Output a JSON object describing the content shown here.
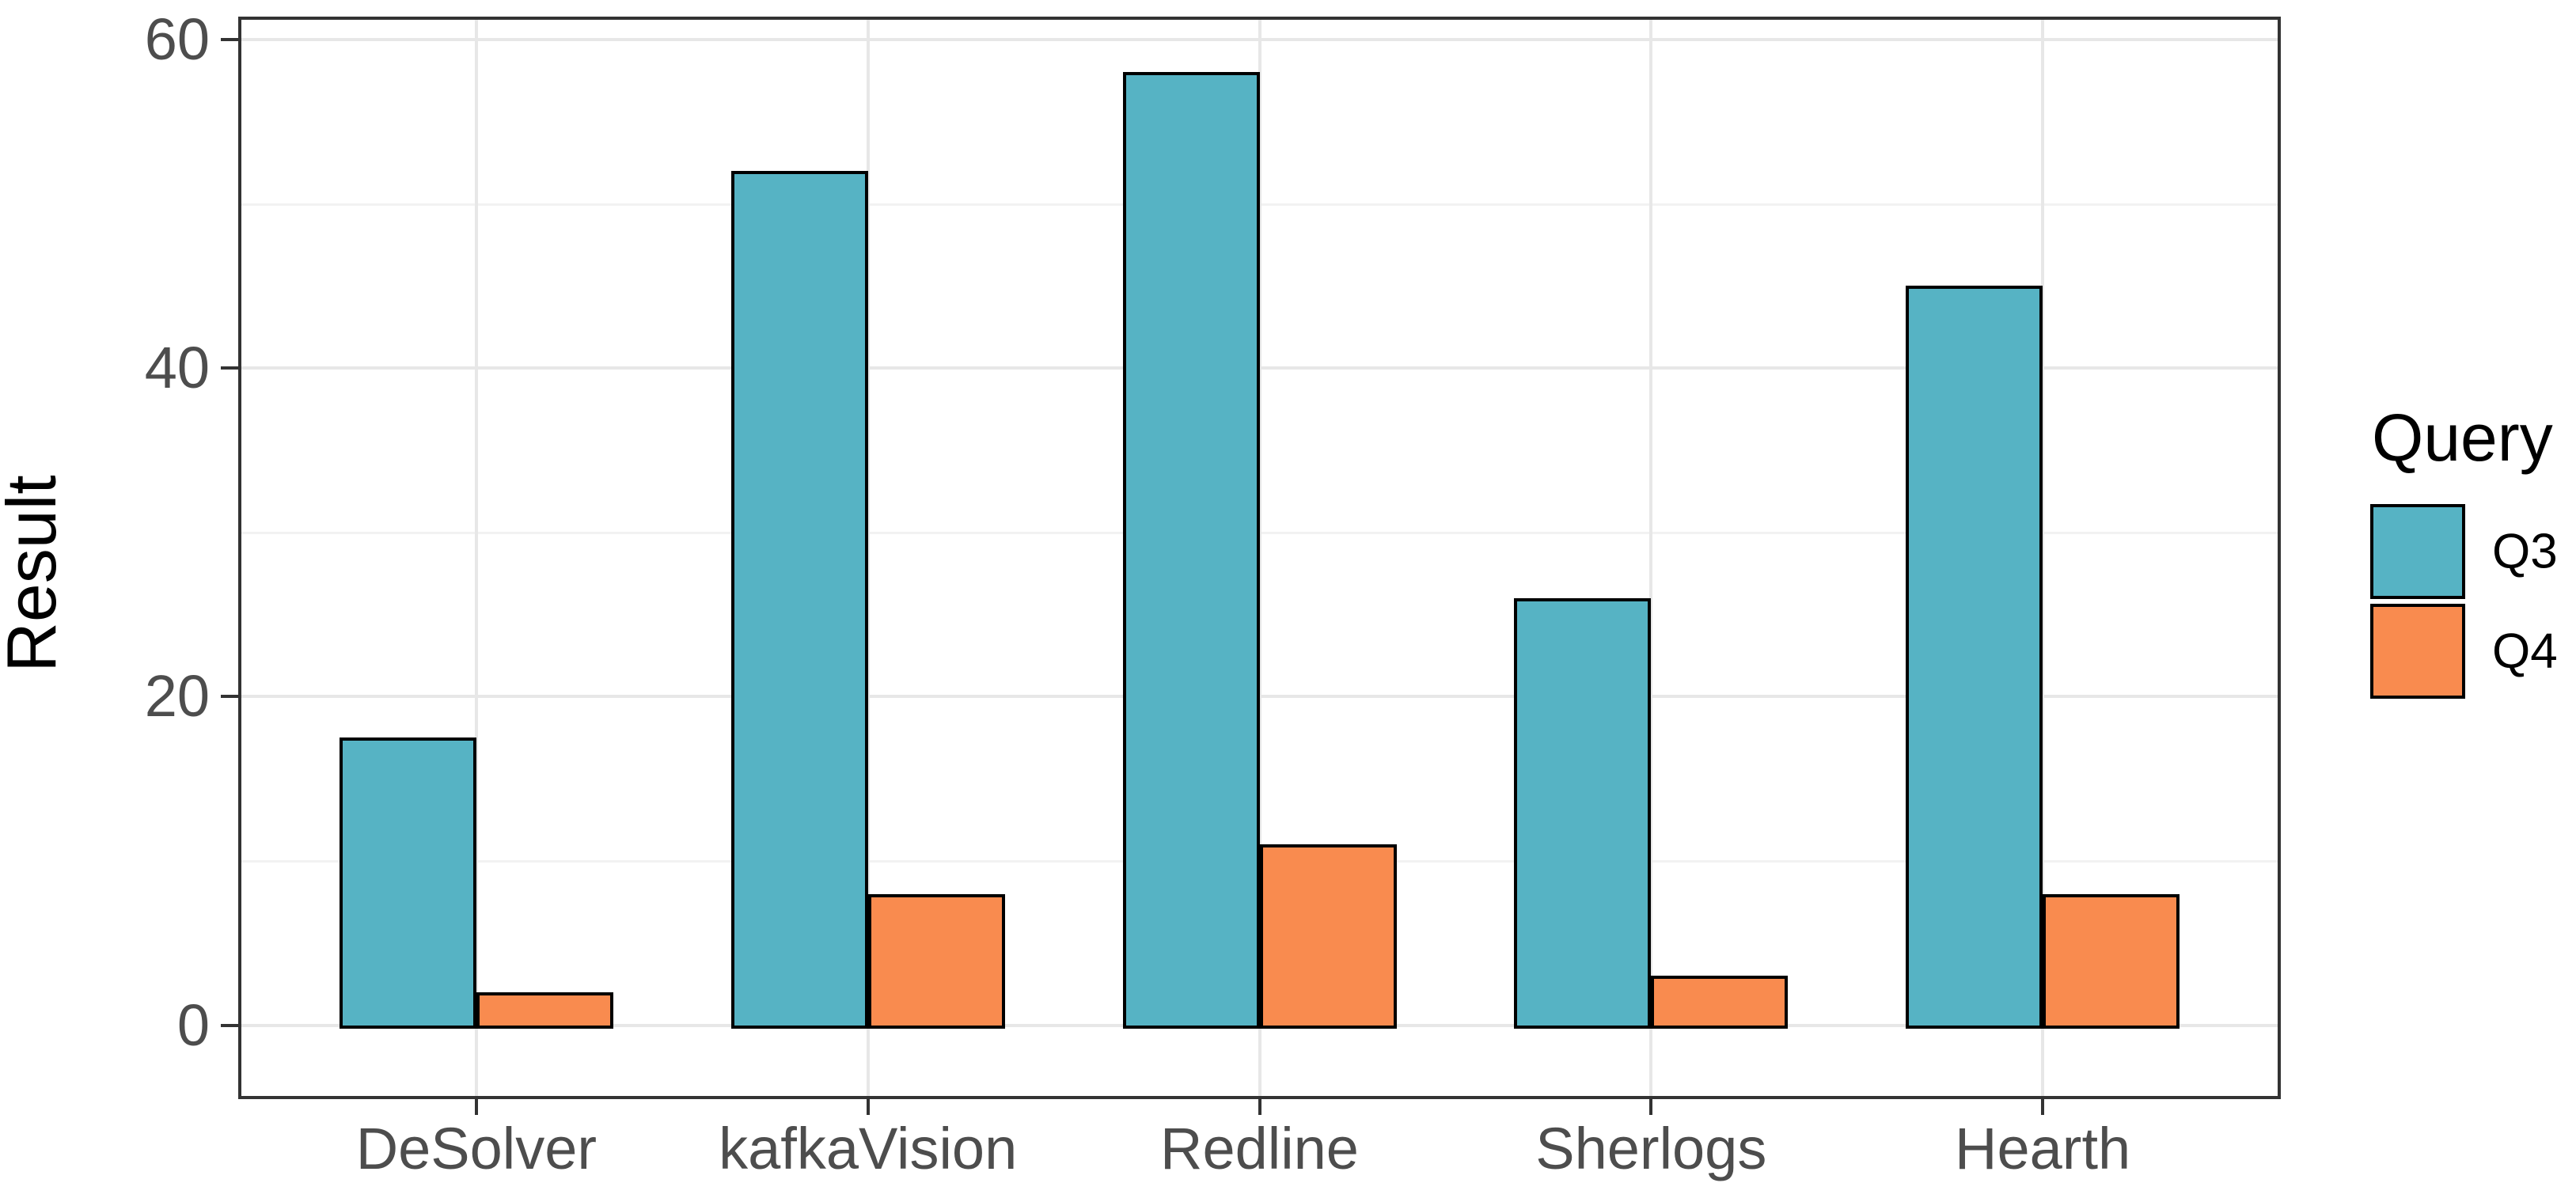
{
  "chart_data": {
    "type": "bar",
    "title": "",
    "categories": [
      "DeSolver",
      "kafkaVision",
      "Redline",
      "Sherlogs",
      "Hearth"
    ],
    "series": [
      {
        "name": "Q3",
        "color": "#56B3C4",
        "values": [
          17.5,
          52,
          58,
          26,
          45
        ]
      },
      {
        "name": "Q4",
        "color": "#F98B4F",
        "values": [
          2,
          8,
          11,
          3,
          8
        ]
      }
    ],
    "xlabel": "",
    "ylabel": "Result",
    "ylim": [
      -4.3,
      61.2
    ],
    "yticks_major": [
      0,
      20,
      40,
      60
    ],
    "yticks_minor": [
      10,
      30,
      50
    ],
    "bar_outline_color": "#000000",
    "grid": {
      "enabled": true,
      "major_color": "#E7E7E7",
      "minor_color": "#F2F2F2"
    },
    "legend": {
      "title": "Query",
      "position": "right",
      "labels": [
        "Q3",
        "Q4"
      ]
    }
  }
}
